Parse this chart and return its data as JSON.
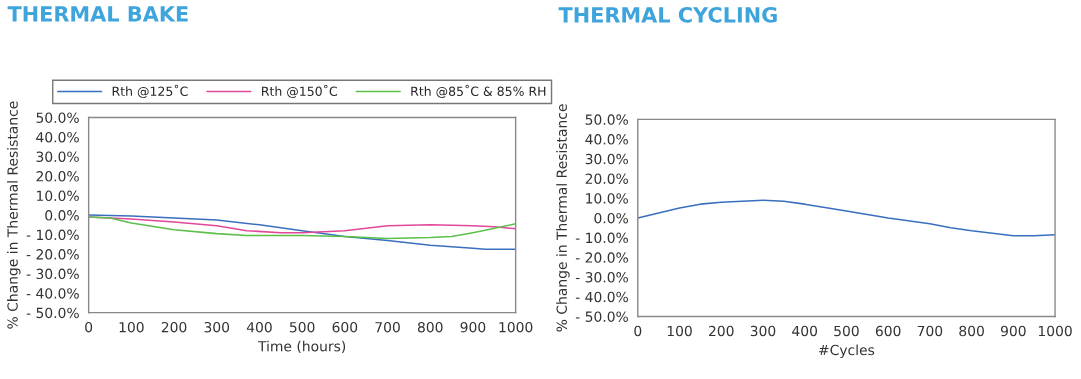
{
  "chart_data": [
    {
      "type": "line",
      "title": "THERMAL BAKE",
      "xlabel": "Time (hours)",
      "ylabel": "% Change in Thermal Resistance",
      "xlim": [
        0,
        1000
      ],
      "xticks": [
        0,
        100,
        200,
        300,
        400,
        500,
        600,
        700,
        800,
        900,
        1000
      ],
      "ylim": [
        -50,
        50
      ],
      "yticks": [
        {
          "value": -50,
          "label": "- 50.0%"
        },
        {
          "value": -40,
          "label": "- 40.0%"
        },
        {
          "value": -30,
          "label": "- 30.0%"
        },
        {
          "value": -20,
          "label": "- 20.0%"
        },
        {
          "value": -10,
          "label": "- 10.0%"
        },
        {
          "value": 0,
          "label": "0.0%"
        },
        {
          "value": 10,
          "label": "10.0%"
        },
        {
          "value": 20,
          "label": "20.0%"
        },
        {
          "value": 30,
          "label": "30.0%"
        },
        {
          "value": 40,
          "label": "40.0%"
        },
        {
          "value": 50,
          "label": "50.0%"
        }
      ],
      "grid": false,
      "legend": "top",
      "marker": "none",
      "line_style": "solid",
      "series": [
        {
          "name": "Rth @125˚C",
          "color": "#3a6fbf",
          "x": [
            0,
            100,
            200,
            300,
            400,
            500,
            600,
            700,
            800,
            900,
            930,
            1000
          ],
          "values": [
            0,
            -0.5,
            -1.5,
            -2.5,
            -5,
            -8,
            -11,
            -13,
            -15.5,
            -17,
            -17.5,
            -17.5
          ]
        },
        {
          "name": "Rth @150˚C",
          "color": "#e0489a",
          "x": [
            0,
            100,
            200,
            300,
            370,
            450,
            500,
            600,
            700,
            800,
            900,
            950,
            1000
          ],
          "values": [
            -1,
            -2,
            -3.5,
            -5.5,
            -8,
            -9,
            -9,
            -8,
            -5.5,
            -5,
            -5.5,
            -6,
            -7
          ]
        },
        {
          "name": "Rth @85˚C & 85% RH",
          "color": "#5cbf4a",
          "x": [
            0,
            50,
            100,
            200,
            300,
            370,
            500,
            600,
            700,
            800,
            850,
            900,
            1000
          ],
          "values": [
            -1,
            -1.5,
            -4,
            -7.5,
            -9.5,
            -10.5,
            -10.5,
            -11,
            -12,
            -11.5,
            -11,
            -9,
            -4.5
          ]
        }
      ]
    },
    {
      "type": "line",
      "title": "THERMAL CYCLING",
      "xlabel": "#Cycles",
      "ylabel": "% Change in Thermal Resistance",
      "xlim": [
        0,
        1000
      ],
      "xticks": [
        0,
        100,
        200,
        300,
        400,
        500,
        600,
        700,
        800,
        900,
        1000
      ],
      "ylim": [
        -50,
        50
      ],
      "yticks": [
        {
          "value": -50,
          "label": "- 50.0%"
        },
        {
          "value": -40,
          "label": "- 40.0%"
        },
        {
          "value": -30,
          "label": "- 30.0%"
        },
        {
          "value": -20,
          "label": "- 20.0%"
        },
        {
          "value": -10,
          "label": "- 10.0%"
        },
        {
          "value": 0,
          "label": "0.0%"
        },
        {
          "value": 10,
          "label": "10.0%"
        },
        {
          "value": 20,
          "label": "20.0%"
        },
        {
          "value": 30,
          "label": "30.0%"
        },
        {
          "value": 40,
          "label": "40.0%"
        },
        {
          "value": 50,
          "label": "50.0%"
        }
      ],
      "grid": false,
      "marker": "none",
      "line_style": "solid",
      "series": [
        {
          "color": "#3a6fbf",
          "x": [
            0,
            100,
            150,
            200,
            300,
            350,
            400,
            500,
            600,
            700,
            750,
            800,
            900,
            950,
            1000
          ],
          "values": [
            0,
            5,
            7,
            8,
            9,
            8.5,
            7,
            3.5,
            0,
            -3,
            -5,
            -6.5,
            -9,
            -9,
            -8.5
          ]
        }
      ]
    }
  ]
}
